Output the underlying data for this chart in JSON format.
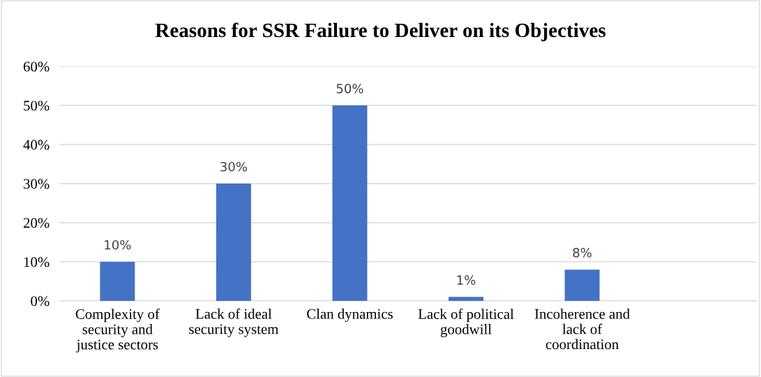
{
  "chart_data": {
    "type": "bar",
    "title": "Reasons for SSR Failure to Deliver on its Objectives",
    "categories": [
      "Complexity of\nsecurity and\njustice sectors",
      "Lack of ideal\nsecurity system",
      "Clan dynamics",
      "Lack of political\ngoodwill",
      "Incoherence and\nlack of\ncoordination",
      null
    ],
    "values": [
      10,
      30,
      50,
      1,
      8,
      null
    ],
    "value_labels": [
      "10%",
      "30%",
      "50%",
      "1%",
      "8%",
      null
    ],
    "color": "#4472c4",
    "ylim": [
      0,
      60
    ],
    "yticks": [
      {
        "value": 0,
        "label": "0%"
      },
      {
        "value": 10,
        "label": "10%"
      },
      {
        "value": 20,
        "label": "20%"
      },
      {
        "value": 30,
        "label": "30%"
      },
      {
        "value": 40,
        "label": "40%"
      },
      {
        "value": 50,
        "label": "50%"
      },
      {
        "value": 60,
        "label": "60%"
      }
    ],
    "grid": "y"
  }
}
